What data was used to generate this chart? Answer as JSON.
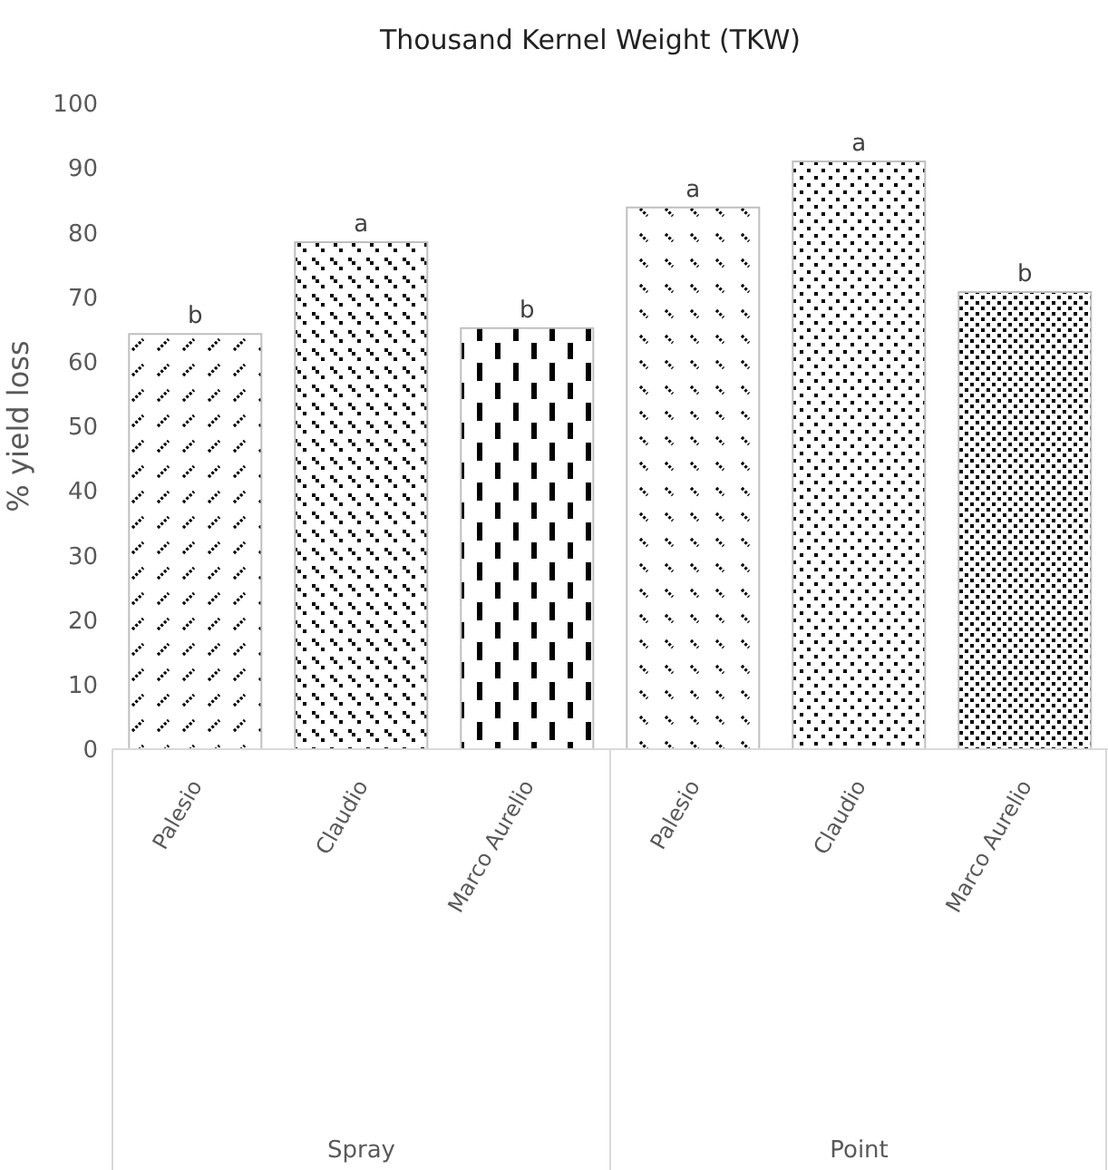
{
  "chart_data": {
    "type": "bar",
    "title": "Thousand Kernel Weight (TKW)",
    "ylabel": "% yield loss",
    "categories": [
      "Palesio",
      "Claudio",
      "Marco Aurelio",
      "Palesio",
      "Claudio",
      "Marco Aurelio"
    ],
    "values": [
      64.3,
      78.5,
      65.2,
      83.9,
      91,
      70.8
    ],
    "value_labels": [
      "b",
      "a",
      "b",
      "a",
      "a",
      "b"
    ],
    "color": "#bfbfbf",
    "annotations": [
      "Spray",
      "Point"
    ],
    "ylim": [
      0,
      100
    ],
    "yticks": [
      0,
      10,
      20,
      30,
      40,
      50,
      60,
      70,
      80,
      90,
      100
    ]
  }
}
